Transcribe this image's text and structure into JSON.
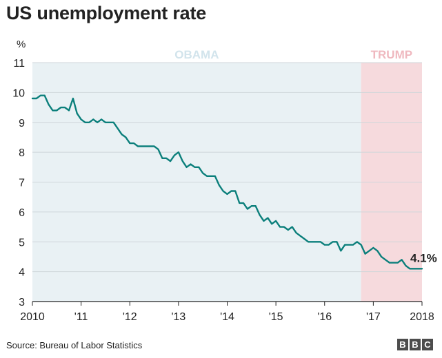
{
  "title": "US unemployment rate",
  "source": "Source: Bureau of Labor Statistics",
  "logo_letters": [
    "B",
    "B",
    "C"
  ],
  "colors": {
    "line": "#0b7f7b",
    "obama_band": "#e9f1f4",
    "trump_band": "#f6dadd",
    "obama_label": "#d2e4ec",
    "trump_label": "#efb8bf",
    "grid": "#cfd6da",
    "axis": "#222222"
  },
  "chart_data": {
    "type": "line",
    "title": "US unemployment rate",
    "ylabel": "%",
    "xlabel": "",
    "ylim": [
      3,
      11
    ],
    "y_ticks": [
      3,
      4,
      5,
      6,
      7,
      8,
      9,
      10,
      11
    ],
    "x_range": [
      "2010-01",
      "2018-01"
    ],
    "x_tick_labels": [
      "2010",
      "'11",
      "'12",
      "'13",
      "'14",
      "'15",
      "'16",
      "'17",
      "2018"
    ],
    "grid": true,
    "periods": [
      {
        "label": "OBAMA",
        "start": "2010-01",
        "end": "2016-10"
      },
      {
        "label": "TRUMP",
        "start": "2016-10",
        "end": "2018-01"
      }
    ],
    "end_label": "4.1%",
    "series": [
      {
        "x": [
          "2010-01",
          "2010-02",
          "2010-03",
          "2010-04",
          "2010-05",
          "2010-06",
          "2010-07",
          "2010-08",
          "2010-09",
          "2010-10",
          "2010-11",
          "2010-12",
          "2011-01",
          "2011-02",
          "2011-03",
          "2011-04",
          "2011-05",
          "2011-06",
          "2011-07",
          "2011-08",
          "2011-09",
          "2011-10",
          "2011-11",
          "2011-12",
          "2012-01",
          "2012-02",
          "2012-03",
          "2012-04",
          "2012-05",
          "2012-06",
          "2012-07",
          "2012-08",
          "2012-09",
          "2012-10",
          "2012-11",
          "2012-12",
          "2013-01",
          "2013-02",
          "2013-03",
          "2013-04",
          "2013-05",
          "2013-06",
          "2013-07",
          "2013-08",
          "2013-09",
          "2013-10",
          "2013-11",
          "2013-12",
          "2014-01",
          "2014-02",
          "2014-03",
          "2014-04",
          "2014-05",
          "2014-06",
          "2014-07",
          "2014-08",
          "2014-09",
          "2014-10",
          "2014-11",
          "2014-12",
          "2015-01",
          "2015-02",
          "2015-03",
          "2015-04",
          "2015-05",
          "2015-06",
          "2015-07",
          "2015-08",
          "2015-09",
          "2015-10",
          "2015-11",
          "2015-12",
          "2016-01",
          "2016-02",
          "2016-03",
          "2016-04",
          "2016-05",
          "2016-06",
          "2016-07",
          "2016-08",
          "2016-09",
          "2016-10",
          "2016-11",
          "2016-12",
          "2017-01",
          "2017-02",
          "2017-03",
          "2017-04",
          "2017-05",
          "2017-06",
          "2017-07",
          "2017-08",
          "2017-09",
          "2017-10",
          "2017-11",
          "2017-12",
          "2018-01"
        ],
        "values": [
          9.8,
          9.8,
          9.9,
          9.9,
          9.6,
          9.4,
          9.4,
          9.5,
          9.5,
          9.4,
          9.8,
          9.3,
          9.1,
          9.0,
          9.0,
          9.1,
          9.0,
          9.1,
          9.0,
          9.0,
          9.0,
          8.8,
          8.6,
          8.5,
          8.3,
          8.3,
          8.2,
          8.2,
          8.2,
          8.2,
          8.2,
          8.1,
          7.8,
          7.8,
          7.7,
          7.9,
          8.0,
          7.7,
          7.5,
          7.6,
          7.5,
          7.5,
          7.3,
          7.2,
          7.2,
          7.2,
          6.9,
          6.7,
          6.6,
          6.7,
          6.7,
          6.3,
          6.3,
          6.1,
          6.2,
          6.2,
          5.9,
          5.7,
          5.8,
          5.6,
          5.7,
          5.5,
          5.5,
          5.4,
          5.5,
          5.3,
          5.2,
          5.1,
          5.0,
          5.0,
          5.0,
          5.0,
          4.9,
          4.9,
          5.0,
          5.0,
          4.7,
          4.9,
          4.9,
          4.9,
          5.0,
          4.9,
          4.6,
          4.7,
          4.8,
          4.7,
          4.5,
          4.4,
          4.3,
          4.3,
          4.3,
          4.4,
          4.2,
          4.1,
          4.1,
          4.1,
          4.1
        ]
      }
    ]
  }
}
